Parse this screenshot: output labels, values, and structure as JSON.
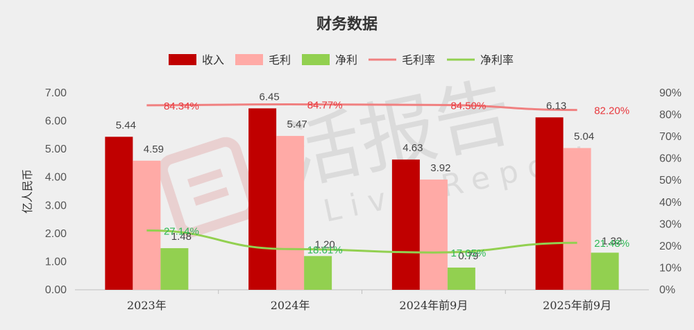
{
  "chart_data": {
    "type": "bar",
    "title": "财务数据",
    "ylabel": "亿人民币",
    "categories": [
      "2023年",
      "2024年",
      "2024年前9月",
      "2025年前9月"
    ],
    "ylim": [
      0,
      7
    ],
    "yticks": [
      "0.00",
      "1.00",
      "2.00",
      "3.00",
      "4.00",
      "5.00",
      "6.00",
      "7.00"
    ],
    "y2lim": [
      0,
      0.9
    ],
    "y2ticks": [
      "0%",
      "10%",
      "20%",
      "30%",
      "40%",
      "50%",
      "60%",
      "70%",
      "80%",
      "90%"
    ],
    "series": [
      {
        "name": "收入",
        "type": "bar",
        "color": "#c00000",
        "values": [
          5.44,
          6.45,
          4.63,
          6.13
        ],
        "labels": [
          "5.44",
          "6.45",
          "4.63",
          "6.13"
        ]
      },
      {
        "name": "毛利",
        "type": "bar",
        "color": "#ffaaa6",
        "values": [
          4.59,
          5.47,
          3.92,
          5.04
        ],
        "labels": [
          "4.59",
          "5.47",
          "3.92",
          "5.04"
        ]
      },
      {
        "name": "净利",
        "type": "bar",
        "color": "#92d050",
        "values": [
          1.48,
          1.2,
          0.79,
          1.32
        ],
        "labels": [
          "1.48",
          "1.20",
          "0.79",
          "1.32"
        ]
      },
      {
        "name": "毛利率",
        "type": "line",
        "axis": "right",
        "color": "#f08080",
        "label_color": "#e8383d",
        "values": [
          0.8434,
          0.8477,
          0.845,
          0.822
        ],
        "labels": [
          "84.34%",
          "84.77%",
          "84.50%",
          "82.20%"
        ]
      },
      {
        "name": "净利率",
        "type": "line",
        "axis": "right",
        "color": "#92d050",
        "label_color": "#2fb855",
        "values": [
          0.2714,
          0.1861,
          0.1705,
          0.2148
        ],
        "labels": [
          "27.14%",
          "18.61%",
          "17.05%",
          "21.48%"
        ]
      }
    ],
    "legend_position": "top",
    "grid": false
  },
  "watermark": {
    "text": "活报告",
    "subtext": "Live Report"
  }
}
